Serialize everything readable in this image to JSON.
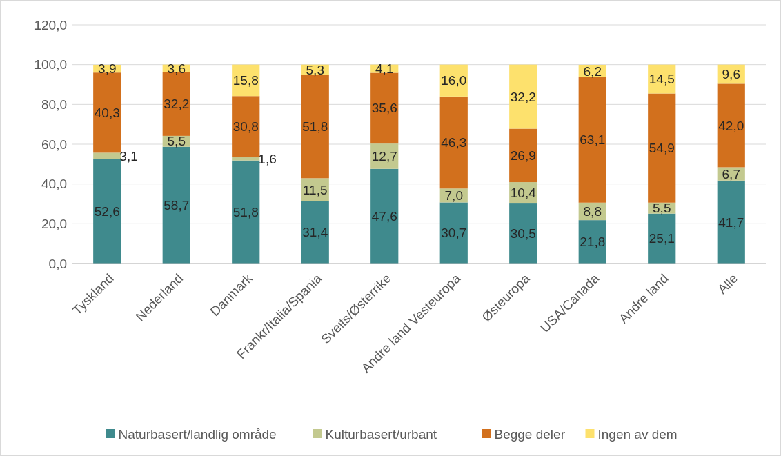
{
  "chart_data": {
    "type": "bar",
    "stacked": true,
    "categories": [
      "Tyskland",
      "Nederland",
      "Danmark",
      "Frankr/Italia/Spania",
      "Sveits/Østerrike",
      "Andre land Vesteuropa",
      "Østeuropa",
      "USA/Canada",
      "Andre land",
      "Alle"
    ],
    "series": [
      {
        "name": "Naturbasert/landlig område",
        "color": "#3f8a8d",
        "values": [
          52.6,
          58.7,
          51.8,
          31.4,
          47.6,
          30.7,
          30.5,
          21.8,
          25.1,
          41.7
        ],
        "value_labels": [
          "52,6",
          "58,7",
          "51,8",
          "31,4",
          "47,6",
          "30,7",
          "30,5",
          "21,8",
          "25,1",
          "41,7"
        ]
      },
      {
        "name": "Kulturbasert/urbant",
        "color": "#c3c98f",
        "values": [
          3.1,
          5.5,
          1.6,
          11.5,
          12.7,
          7.0,
          10.4,
          8.8,
          5.5,
          6.7
        ],
        "value_labels": [
          "3,1",
          "5,5",
          "1,6",
          "11,5",
          "12,7",
          "7,0",
          "10,4",
          "8,8",
          "5,5",
          "6,7"
        ]
      },
      {
        "name": "Begge deler",
        "color": "#d2701d",
        "values": [
          40.3,
          32.2,
          30.8,
          51.8,
          35.6,
          46.3,
          26.9,
          63.1,
          54.9,
          42.0
        ],
        "value_labels": [
          "40,3",
          "32,2",
          "30,8",
          "51,8",
          "35,6",
          "46,3",
          "26,9",
          "63,1",
          "54,9",
          "42,0"
        ]
      },
      {
        "name": "Ingen av dem",
        "color": "#fde16d",
        "values": [
          3.9,
          3.6,
          15.8,
          5.3,
          4.1,
          16.0,
          32.2,
          6.2,
          14.5,
          9.6
        ],
        "value_labels": [
          "3,9",
          "3,6",
          "15,8",
          "5,3",
          "4,1",
          "16,0",
          "32,2",
          "6,2",
          "14,5",
          "9,6"
        ]
      }
    ],
    "ylim": [
      0,
      120
    ],
    "yticks": [
      {
        "value": 0,
        "label": "0,0"
      },
      {
        "value": 20,
        "label": "20,0"
      },
      {
        "value": 40,
        "label": "40,0"
      },
      {
        "value": 60,
        "label": "60,0"
      },
      {
        "value": 80,
        "label": "80,0"
      },
      {
        "value": 100,
        "label": "100,0"
      },
      {
        "value": 120,
        "label": "120,0"
      }
    ],
    "grid": "y",
    "legend": "bottom"
  }
}
